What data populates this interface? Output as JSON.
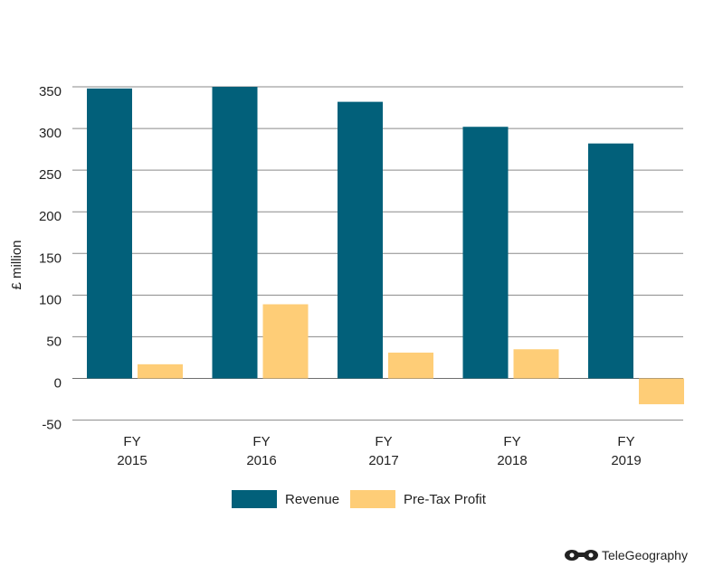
{
  "chart_data": {
    "type": "bar",
    "categories": [
      "FY 2015",
      "FY 2016",
      "FY 2017",
      "FY 2018",
      "FY 2019"
    ],
    "category_lines": [
      [
        "FY",
        "2015"
      ],
      [
        "FY",
        "2016"
      ],
      [
        "FY",
        "2017"
      ],
      [
        "FY",
        "2018"
      ],
      [
        "FY",
        "2019"
      ]
    ],
    "series": [
      {
        "name": "Revenue",
        "color": "#02607a",
        "values": [
          348,
          350,
          332,
          302,
          282
        ]
      },
      {
        "name": "Pre-Tax Profit",
        "color": "#fecd77",
        "values": [
          17,
          89,
          31,
          35,
          -31
        ]
      }
    ],
    "ylabel": "£ million",
    "xlabel": "",
    "title": "",
    "ylim": [
      -50,
      350
    ],
    "yticks": [
      350,
      300,
      250,
      200,
      150,
      100,
      50,
      0,
      -50
    ],
    "grid": true,
    "legend": "bottom-center"
  },
  "brand": {
    "name": "TeleGeography",
    "icon": "telegeography-logo-icon"
  }
}
